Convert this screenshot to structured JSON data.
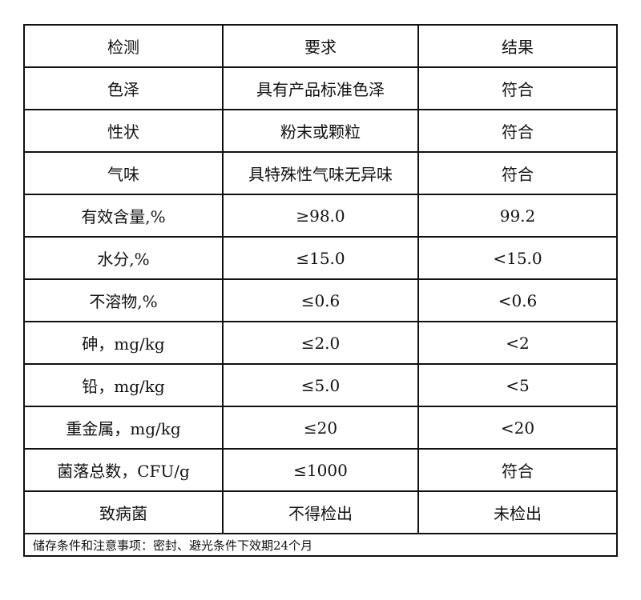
{
  "header": [
    "检测",
    "要求",
    "结果"
  ],
  "rows": [
    [
      "色泽",
      "具有产品标准色泽",
      "符合"
    ],
    [
      "性状",
      "粉末或颗粒",
      "符合"
    ],
    [
      "气味",
      "具特殊性气味无异味",
      "符合"
    ],
    [
      "有效含量,%",
      "≥98.0",
      "99.2"
    ],
    [
      "水分,%",
      "≤15.0",
      "<15.0"
    ],
    [
      "不溶物,%",
      "≤0.6",
      "<0.6"
    ],
    [
      "砷，mg/kg",
      "≤2.0",
      "<2"
    ],
    [
      "铅，mg/kg",
      "≤5.0",
      "<5"
    ],
    [
      "重金属，mg/kg",
      "≤20",
      "<20"
    ],
    [
      "菌落总数，CFU/g",
      "≤1000",
      "符合"
    ],
    [
      "致病菌",
      "不得检出",
      "未检出"
    ]
  ],
  "footer": "储存条件和注意事项：密封、避光条件下效期24个月"
}
